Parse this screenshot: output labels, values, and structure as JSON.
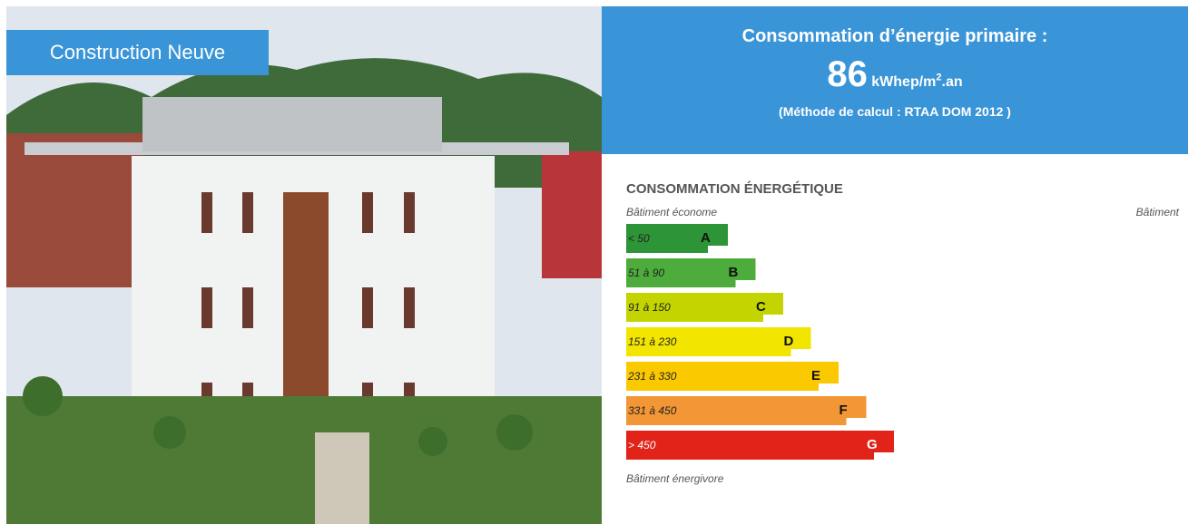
{
  "photo": {
    "label": "Construction Neuve"
  },
  "header": {
    "title": "Consommation d’énergie primaire :",
    "value": "86",
    "unit": "kWhep/m",
    "unit_sup": "2",
    "unit_suffix": ".an",
    "method": "(Méthode de calcul : RTAA DOM 2012 )"
  },
  "label": {
    "title": "CONSOMMATION ÉNERGÉTIQUE",
    "top_left": "Bâtiment économe",
    "top_right": "Bâtiment",
    "bottom": "Bâtiment énergivore",
    "classes": [
      {
        "range": "< 50",
        "letter": "A",
        "color": "#2e9438"
      },
      {
        "range": "51 à 90",
        "letter": "B",
        "color": "#4dac3c"
      },
      {
        "range": "91 à 150",
        "letter": "C",
        "color": "#c3d400"
      },
      {
        "range": "151 à 230",
        "letter": "D",
        "color": "#f2e500"
      },
      {
        "range": "231 à 330",
        "letter": "E",
        "color": "#fbc900"
      },
      {
        "range": "331 à 450",
        "letter": "F",
        "color": "#f39636"
      },
      {
        "range": "> 450",
        "letter": "G",
        "color": "#e2231a"
      }
    ]
  }
}
